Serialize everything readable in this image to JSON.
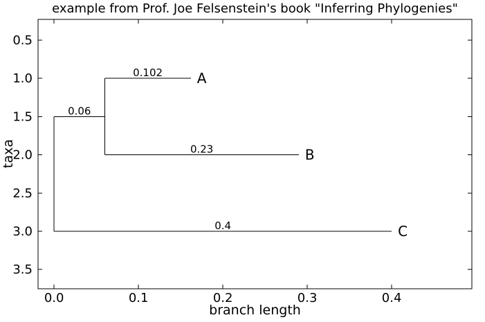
{
  "chart_data": {
    "type": "line",
    "subtype": "phylogenetic-tree",
    "title": "example from Prof. Joe Felsenstein's book \"Inferring Phylogenies\"",
    "xlabel": "branch length",
    "ylabel": "taxa",
    "grid": false,
    "legend": null,
    "xlim": [
      -0.019,
      0.495
    ],
    "ylim": [
      3.752,
      0.228
    ],
    "y_axis_inverted": true,
    "x_ticks": {
      "values": [
        0.0,
        0.1,
        0.2,
        0.3,
        0.4
      ],
      "labels": [
        "0.0",
        "0.1",
        "0.2",
        "0.3",
        "0.4"
      ]
    },
    "y_ticks": {
      "values": [
        0.5,
        1.0,
        1.5,
        2.0,
        2.5,
        3.0,
        3.5
      ],
      "labels": [
        "0.5",
        "1.0",
        "1.5",
        "2.0",
        "2.5",
        "3.0",
        "3.5"
      ]
    },
    "segments": [
      {
        "name": "root-vertical-edge",
        "x1": 0.0,
        "y1": 1.5,
        "x2": 0.0,
        "y2": 3.0
      },
      {
        "name": "internal-branch",
        "x1": 0.0,
        "y1": 1.5,
        "x2": 0.06,
        "y2": 1.5,
        "length_label": "0.06"
      },
      {
        "name": "internal-vertical-edge",
        "x1": 0.06,
        "y1": 1.0,
        "x2": 0.06,
        "y2": 2.0
      },
      {
        "name": "branch-A",
        "x1": 0.06,
        "y1": 1.0,
        "x2": 0.162,
        "y2": 1.0,
        "length_label": "0.102",
        "taxon": "A"
      },
      {
        "name": "branch-B",
        "x1": 0.06,
        "y1": 2.0,
        "x2": 0.29,
        "y2": 2.0,
        "length_label": "0.23",
        "taxon": "B"
      },
      {
        "name": "branch-C",
        "x1": 0.0,
        "y1": 3.0,
        "x2": 0.4,
        "y2": 3.0,
        "length_label": "0.4",
        "taxon": "C"
      }
    ],
    "tips": [
      {
        "name": "A",
        "row": 1.0,
        "branch_length": 0.102
      },
      {
        "name": "B",
        "row": 2.0,
        "branch_length": 0.23
      },
      {
        "name": "C",
        "row": 3.0,
        "branch_length": 0.4
      }
    ]
  }
}
